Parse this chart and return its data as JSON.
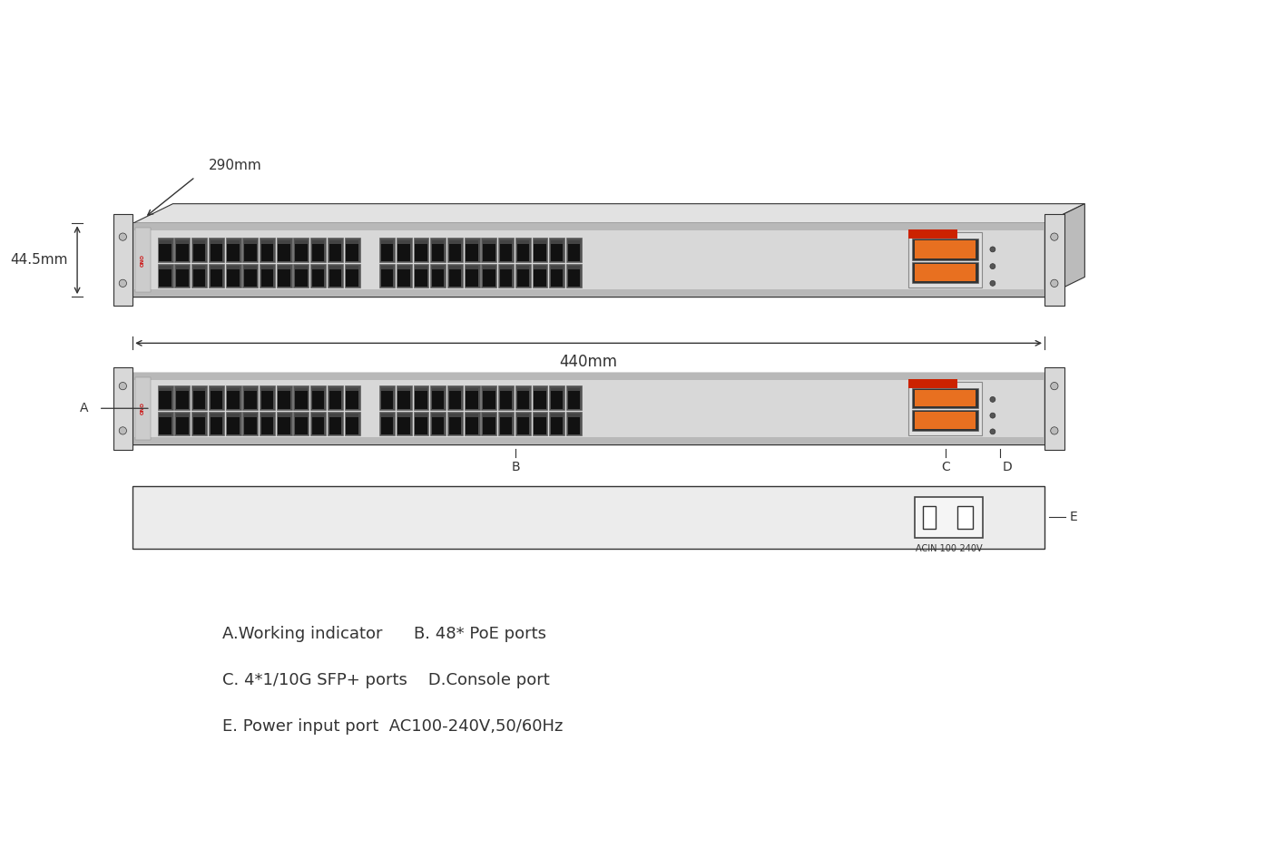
{
  "bg_color": "#ffffff",
  "line_color": "#333333",
  "dark_color": "#222222",
  "gray_color": "#aaaaaa",
  "light_gray": "#cccccc",
  "silver": "#d8d8d8",
  "dark_port": "#1a1a1a",
  "port_inner": "#2a2a2a",
  "port_notch": "#555555",
  "orange_color": "#e87020",
  "red_bar": "#cc2200",
  "anno_color": "#333333",
  "dim_290": "290mm",
  "dim_440": "440mm",
  "dim_44": "44.5mm",
  "label_A": "A",
  "label_B": "B",
  "label_C": "C",
  "label_D": "D",
  "label_E": "E",
  "legend_line1": "A.Working indicator      B. 48* PoE ports",
  "legend_line2": "C. 4*1/10G SFP+ ports    D.Console port",
  "legend_line3": "E. Power input port  AC100-240V,50/60Hz",
  "acin_label": "ACIN 100-240V"
}
